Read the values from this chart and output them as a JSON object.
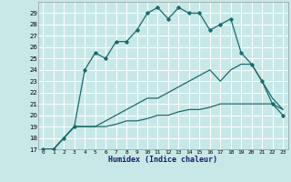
{
  "xlabel": "Humidex (Indice chaleur)",
  "bg_color": "#c8e8e8",
  "grid_color": "#ffffff",
  "line_color": "#1a6b6b",
  "xlim": [
    -0.5,
    23.5
  ],
  "ylim": [
    17,
    30
  ],
  "yticks": [
    17,
    18,
    19,
    20,
    21,
    22,
    23,
    24,
    25,
    26,
    27,
    28,
    29
  ],
  "xticks": [
    0,
    1,
    2,
    3,
    4,
    5,
    6,
    7,
    8,
    9,
    10,
    11,
    12,
    13,
    14,
    15,
    16,
    17,
    18,
    19,
    20,
    21,
    22,
    23
  ],
  "line1_x": [
    0,
    1,
    2,
    3,
    4,
    5,
    6,
    7,
    8,
    9,
    10,
    11,
    12,
    13,
    14,
    15,
    16,
    17,
    18,
    19,
    20,
    21,
    22,
    23
  ],
  "line1_y": [
    17.0,
    17.0,
    18.0,
    19.0,
    24.0,
    25.5,
    25.0,
    26.5,
    26.5,
    27.5,
    29.0,
    29.5,
    28.5,
    29.5,
    29.0,
    29.0,
    27.5,
    28.0,
    28.5,
    25.5,
    24.5,
    23.0,
    21.0,
    20.0
  ],
  "line2_x": [
    0,
    1,
    2,
    3,
    4,
    5,
    6,
    7,
    8,
    9,
    10,
    11,
    12,
    13,
    14,
    15,
    16,
    17,
    18,
    19,
    20,
    21,
    22,
    23
  ],
  "line2_y": [
    17.0,
    17.0,
    18.0,
    19.0,
    19.0,
    19.0,
    19.0,
    19.2,
    19.5,
    19.5,
    19.7,
    20.0,
    20.0,
    20.3,
    20.5,
    20.5,
    20.7,
    21.0,
    21.0,
    21.0,
    21.0,
    21.0,
    21.0,
    20.5
  ],
  "line3_x": [
    0,
    1,
    2,
    3,
    4,
    5,
    6,
    7,
    8,
    9,
    10,
    11,
    12,
    13,
    14,
    15,
    16,
    17,
    18,
    19,
    20,
    21,
    22,
    23
  ],
  "line3_y": [
    17.0,
    17.0,
    18.0,
    19.0,
    19.0,
    19.0,
    19.5,
    20.0,
    20.5,
    21.0,
    21.5,
    21.5,
    22.0,
    22.5,
    23.0,
    23.5,
    24.0,
    23.0,
    24.0,
    24.5,
    24.5,
    23.0,
    21.5,
    20.5
  ]
}
